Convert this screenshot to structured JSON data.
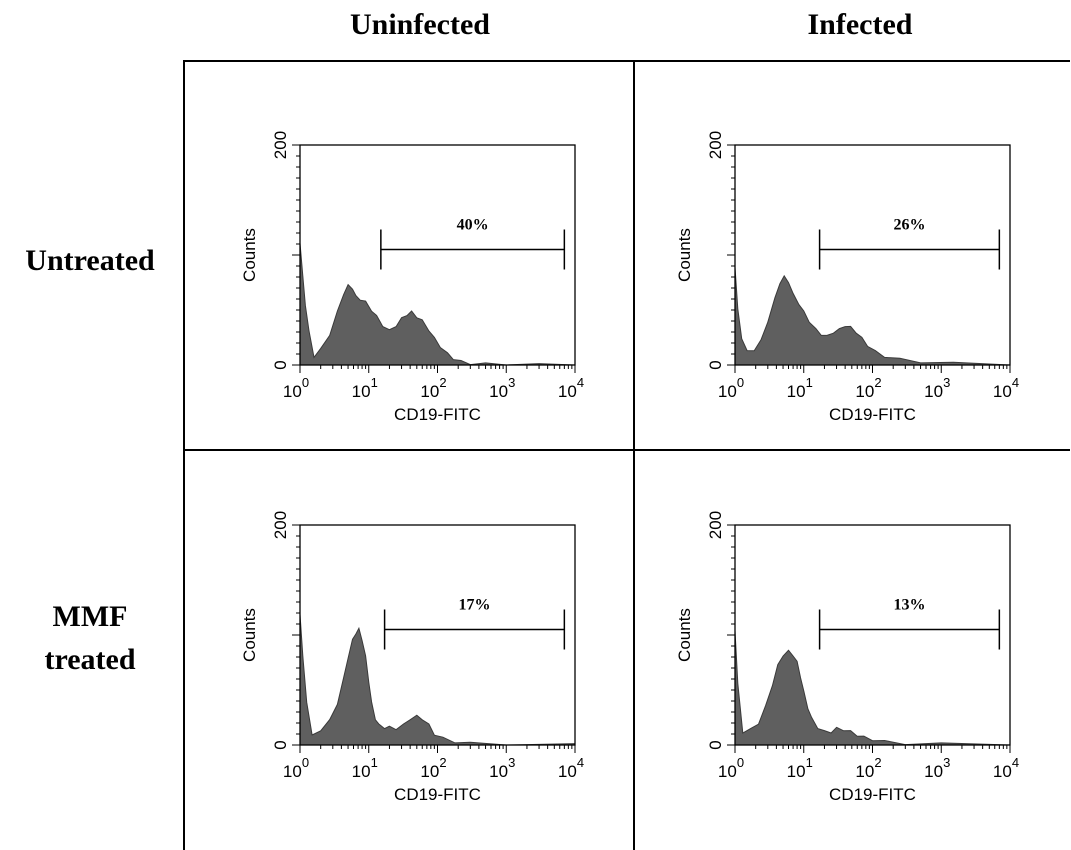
{
  "columns": [
    "Uninfected",
    "Infected"
  ],
  "rows": [
    "Untreated",
    "MMF\ntreated"
  ],
  "row_labels": {
    "untreated": "Untreated",
    "mmf_line1": "MMF",
    "mmf_line2": "treated"
  },
  "colors": {
    "fill": "#5f5f5f",
    "axis": "#000000",
    "background": "#ffffff"
  },
  "chart_data": [
    {
      "type": "area",
      "panel": "Untreated / Uninfected",
      "xlabel": "CD19-FITC",
      "ylabel": "Counts",
      "x_scale": "log",
      "xlim": [
        1,
        10000
      ],
      "ylim": [
        0,
        200
      ],
      "x_ticks": [
        "10^0",
        "10^1",
        "10^2",
        "10^3",
        "10^4"
      ],
      "y_ticks": [
        "0",
        "200"
      ],
      "gate": {
        "label": "40%",
        "x_range": [
          15,
          7000
        ],
        "y": 105
      },
      "x": [
        1,
        1.1,
        1.2,
        1.35,
        1.6,
        2,
        2.7,
        3.5,
        4.3,
        5,
        5.8,
        6.5,
        7.5,
        9,
        11,
        13,
        16,
        20,
        25,
        30,
        36,
        42,
        50,
        60,
        75,
        90,
        110,
        140,
        170,
        220,
        300,
        500,
        1000,
        3000,
        10000
      ],
      "y": [
        112,
        80,
        55,
        30,
        8,
        14,
        28,
        48,
        65,
        72,
        70,
        62,
        60,
        57,
        50,
        44,
        36,
        31,
        36,
        42,
        46,
        48,
        44,
        40,
        32,
        24,
        17,
        10,
        6,
        3,
        1.5,
        0.8,
        0.4,
        0.2,
        0.1
      ]
    },
    {
      "type": "area",
      "panel": "Untreated / Infected",
      "xlabel": "CD19-FITC",
      "ylabel": "Counts",
      "x_scale": "log",
      "xlim": [
        1,
        10000
      ],
      "ylim": [
        0,
        200
      ],
      "x_ticks": [
        "10^0",
        "10^1",
        "10^2",
        "10^3",
        "10^4"
      ],
      "y_ticks": [
        "0",
        "200"
      ],
      "gate": {
        "label": "26%",
        "x_range": [
          17,
          7000
        ],
        "y": 105
      },
      "x": [
        1,
        1.1,
        1.25,
        1.5,
        1.9,
        2.4,
        3,
        3.8,
        4.5,
        5.2,
        6,
        7,
        8.5,
        10,
        12,
        15,
        18,
        22,
        27,
        33,
        40,
        48,
        58,
        70,
        85,
        110,
        150,
        250,
        500,
        1500,
        10000
      ],
      "y": [
        90,
        50,
        25,
        12,
        14,
        22,
        40,
        60,
        75,
        80,
        76,
        64,
        56,
        48,
        40,
        32,
        28,
        26,
        30,
        32,
        36,
        34,
        30,
        24,
        18,
        12,
        8,
        5,
        3,
        1.5,
        0.8
      ]
    },
    {
      "type": "area",
      "panel": "MMF treated / Uninfected",
      "xlabel": "CD19-FITC",
      "ylabel": "Counts",
      "x_scale": "log",
      "xlim": [
        1,
        10000
      ],
      "ylim": [
        0,
        200
      ],
      "x_ticks": [
        "10^0",
        "10^1",
        "10^2",
        "10^3",
        "10^4"
      ],
      "y_ticks": [
        "0",
        "200"
      ],
      "gate": {
        "label": "17%",
        "x_range": [
          17,
          7000
        ],
        "y": 105
      },
      "x": [
        1,
        1.1,
        1.25,
        1.5,
        2,
        2.7,
        3.5,
        4.3,
        5,
        5.8,
        6.5,
        7.2,
        8,
        9,
        10,
        11,
        12.5,
        14,
        17,
        20,
        25,
        32,
        40,
        50,
        60,
        75,
        90,
        120,
        180,
        300,
        1000,
        10000
      ],
      "y": [
        120,
        80,
        40,
        8,
        14,
        22,
        38,
        60,
        80,
        95,
        102,
        105,
        96,
        80,
        58,
        38,
        24,
        18,
        16,
        16,
        15,
        18,
        24,
        26,
        24,
        18,
        10,
        6,
        3,
        1.5,
        0.6,
        0.2
      ]
    },
    {
      "type": "area",
      "panel": "MMF treated / Infected",
      "xlabel": "CD19-FITC",
      "ylabel": "Counts",
      "x_scale": "log",
      "xlim": [
        1,
        10000
      ],
      "ylim": [
        0,
        200
      ],
      "x_ticks": [
        "10^0",
        "10^1",
        "10^2",
        "10^3",
        "10^4"
      ],
      "y_ticks": [
        "0",
        "200"
      ],
      "gate": {
        "label": "13%",
        "x_range": [
          17,
          7000
        ],
        "y": 105
      },
      "x": [
        1,
        1.1,
        1.3,
        1.7,
        2.2,
        2.8,
        3.5,
        4.2,
        5,
        6,
        7,
        8,
        9,
        10,
        11.5,
        13,
        16,
        20,
        25,
        30,
        38,
        48,
        60,
        75,
        100,
        150,
        300,
        1000,
        10000
      ],
      "y": [
        105,
        55,
        12,
        14,
        20,
        35,
        55,
        72,
        82,
        85,
        82,
        75,
        62,
        48,
        34,
        24,
        16,
        12,
        12,
        15,
        14,
        12,
        9,
        7,
        5,
        3,
        1.5,
        0.8,
        0.4
      ]
    }
  ]
}
